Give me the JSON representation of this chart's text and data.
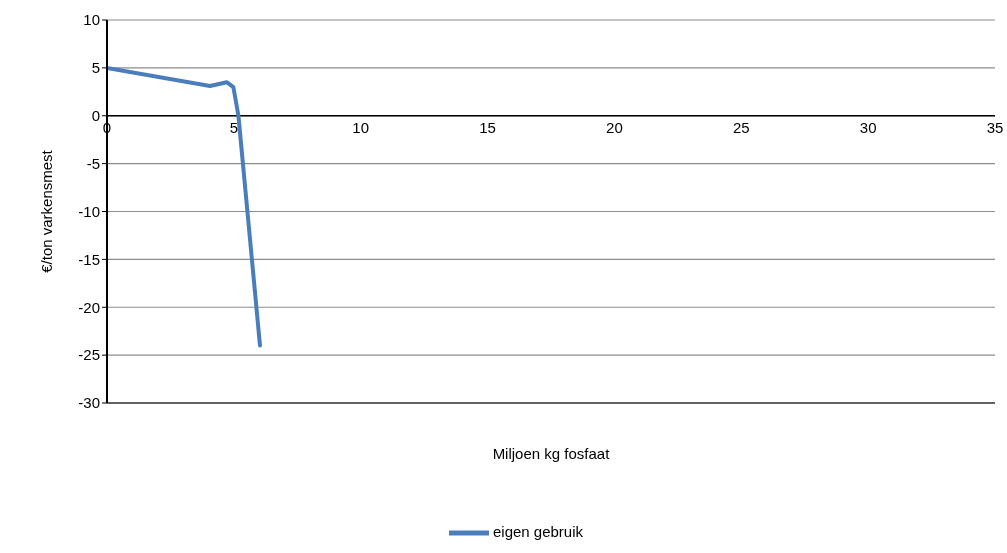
{
  "chart_data": {
    "type": "line",
    "xlabel": "Miljoen kg fosfaat",
    "ylabel": "€/ton varkensmest",
    "xlim": [
      0,
      35
    ],
    "xticks": [
      0,
      5,
      10,
      15,
      20,
      25,
      30,
      35
    ],
    "ylim": [
      -30,
      10
    ],
    "yticks": [
      -30,
      -25,
      -20,
      -15,
      -10,
      -5,
      0,
      5,
      10
    ],
    "grid": "y",
    "legend": "bottom",
    "marker": "none",
    "series": [
      {
        "name": "eigen gebruik",
        "color": "#4a7ebb",
        "x": [
          0,
          4.06,
          4.72,
          4.98,
          5.18,
          6.03
        ],
        "values": [
          5,
          3.1,
          3.5,
          3,
          0,
          -24
        ]
      }
    ]
  }
}
